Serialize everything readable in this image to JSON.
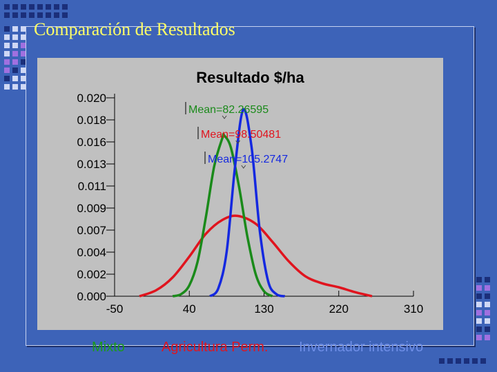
{
  "slide": {
    "title": "Comparación de Resultados"
  },
  "colors": {
    "background": "#3d63b8",
    "plot_background": "#c0c0c0",
    "title": "#ffff66",
    "decor_squares": [
      "#1b2f7a",
      "#cfd8f5",
      "#a070e0"
    ]
  },
  "legend": [
    {
      "label": "Mixto",
      "color": "#1a9a1a"
    },
    {
      "label": "Agricultura Perm.",
      "color": "#e0141e"
    },
    {
      "label": "Invernador intensivo",
      "color": "#6f8fe8"
    }
  ],
  "chart_data": {
    "type": "line",
    "title": "Resultado $/ha",
    "xlabel": "",
    "ylabel": "",
    "xlim": [
      -50,
      310
    ],
    "ylim": [
      0,
      0.02
    ],
    "x_ticks": [
      "-50",
      "40",
      "130",
      "220",
      "310"
    ],
    "y_ticks": [
      "0.020",
      "0.018",
      "0.016",
      "0.013",
      "0.011",
      "0.009",
      "0.007",
      "0.004",
      "0.002",
      "0.000"
    ],
    "grid": false,
    "series": [
      {
        "name": "Mixto",
        "color": "#1a8a1a",
        "x": [
          20,
          30,
          40,
          50,
          60,
          70,
          80,
          82,
          90,
          100,
          110,
          120,
          130,
          140
        ],
        "y": [
          0.0,
          0.0002,
          0.0011,
          0.0035,
          0.008,
          0.0131,
          0.016,
          0.0162,
          0.015,
          0.011,
          0.006,
          0.0022,
          0.0005,
          0.0
        ]
      },
      {
        "name": "Agricultura Perm.",
        "color": "#e0141e",
        "x": [
          -20,
          0,
          20,
          40,
          60,
          80,
          98,
          120,
          140,
          160,
          180,
          200,
          220,
          240,
          260
        ],
        "y": [
          0.0,
          0.0006,
          0.0019,
          0.004,
          0.0063,
          0.0077,
          0.0081,
          0.0073,
          0.0055,
          0.0035,
          0.002,
          0.0013,
          0.0009,
          0.0004,
          0.0
        ]
      },
      {
        "name": "Invernador intensivo",
        "color": "#1428e0",
        "x": [
          65,
          75,
          85,
          95,
          105,
          115,
          125,
          135,
          145,
          155
        ],
        "y": [
          0.0,
          0.0008,
          0.0045,
          0.013,
          0.0188,
          0.015,
          0.0065,
          0.0015,
          0.0002,
          0.0
        ]
      }
    ],
    "annotations": [
      {
        "text": "Mean=82.26595",
        "series": "Mixto",
        "x": 82.26595
      },
      {
        "text": "Mean=98.50481",
        "series": "Agricultura Perm.",
        "x": 98.50481
      },
      {
        "text": "Mean=105.2747",
        "series": "Invernador intensivo",
        "x": 105.2747
      }
    ]
  }
}
